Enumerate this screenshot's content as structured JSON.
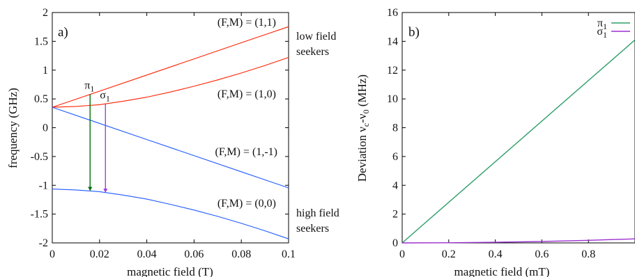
{
  "chart_data": [
    {
      "type": "line",
      "panel_label": "a)",
      "xlabel": "magnetic field (T)",
      "ylabel": "frequency (GHz)",
      "xlim": [
        0,
        0.1
      ],
      "ylim": [
        -2,
        2
      ],
      "xticks": [
        "0",
        "0.02",
        "0.04",
        "0.06",
        "0.08",
        "0.1"
      ],
      "yticks": [
        "2",
        "1.5",
        "1",
        "0.5",
        "0",
        "-0.5",
        "-1",
        "-1.5",
        "-2"
      ],
      "colors": {
        "low_field": "#ff2200",
        "high_field": "#1f5bff",
        "pi": "#00700a",
        "sigma": "#a040e0"
      },
      "series": [
        {
          "color": "low_field",
          "x": [
            0,
            0.02,
            0.04,
            0.06,
            0.08,
            0.1
          ],
          "y": [
            0.355,
            0.635,
            0.915,
            1.195,
            1.475,
            1.755
          ]
        },
        {
          "color": "low_field",
          "x": [
            0,
            0.01,
            0.02,
            0.03,
            0.04,
            0.05,
            0.06,
            0.07,
            0.08,
            0.09,
            0.1
          ],
          "y": [
            0.355,
            0.37,
            0.4,
            0.46,
            0.53,
            0.62,
            0.72,
            0.83,
            0.95,
            1.08,
            1.22
          ]
        },
        {
          "color": "high_field",
          "x": [
            0,
            0.02,
            0.04,
            0.06,
            0.08,
            0.1
          ],
          "y": [
            0.355,
            0.075,
            -0.205,
            -0.485,
            -0.765,
            -1.045
          ]
        },
        {
          "color": "high_field",
          "x": [
            0,
            0.01,
            0.02,
            0.03,
            0.04,
            0.05,
            0.06,
            0.07,
            0.08,
            0.09,
            0.1
          ],
          "y": [
            -1.065,
            -1.08,
            -1.11,
            -1.17,
            -1.24,
            -1.33,
            -1.43,
            -1.54,
            -1.66,
            -1.79,
            -1.93
          ]
        }
      ],
      "transitions": [
        {
          "label": "π",
          "sub": "1",
          "x": 0.016,
          "y_from": 0.58,
          "y_to": -1.1,
          "color": "pi"
        },
        {
          "label": "σ",
          "sub": "1",
          "x": 0.0225,
          "y_from": 0.41,
          "y_to": -1.13,
          "color": "sigma"
        }
      ],
      "annotations": {
        "state_11": "(F,M) = (1,1)",
        "state_10": "(F,M) = (1,0)",
        "state_1m1": "(F,M) = (1,-1)",
        "state_00": "(F,M) = (0,0)",
        "low_line1": "low field",
        "low_line2": "seekers",
        "high_line1": "high field",
        "high_line2": "seekers"
      }
    },
    {
      "type": "line",
      "panel_label": "b)",
      "xlabel": "magnetic field (mT)",
      "ylabel_main": "Deviation ν",
      "ylabel_sub1": "c",
      "ylabel_mid": "-ν",
      "ylabel_sub2": "0",
      "ylabel_tail": " (MHz)",
      "xlim": [
        0,
        1
      ],
      "ylim": [
        0,
        16
      ],
      "xticks": [
        "0",
        "0.2",
        "0.4",
        "0.6",
        "0.8"
      ],
      "xtick_values": [
        0,
        0.2,
        0.4,
        0.6,
        0.8
      ],
      "yticks": [
        "16",
        "14",
        "12",
        "10",
        "8",
        "6",
        "4",
        "2",
        "0"
      ],
      "colors": {
        "pi": "#2e9e6a",
        "sigma": "#9b2fd0"
      },
      "legend_position": "top-right",
      "series": [
        {
          "name": "π",
          "sub": "1",
          "color": "pi",
          "x": [
            0,
            1
          ],
          "y": [
            0,
            14.1
          ]
        },
        {
          "name": "σ",
          "sub": "1",
          "color": "sigma",
          "x": [
            0,
            0.2,
            0.4,
            0.6,
            0.8,
            1
          ],
          "y": [
            0,
            0.01,
            0.045,
            0.1,
            0.18,
            0.28
          ]
        }
      ]
    }
  ]
}
